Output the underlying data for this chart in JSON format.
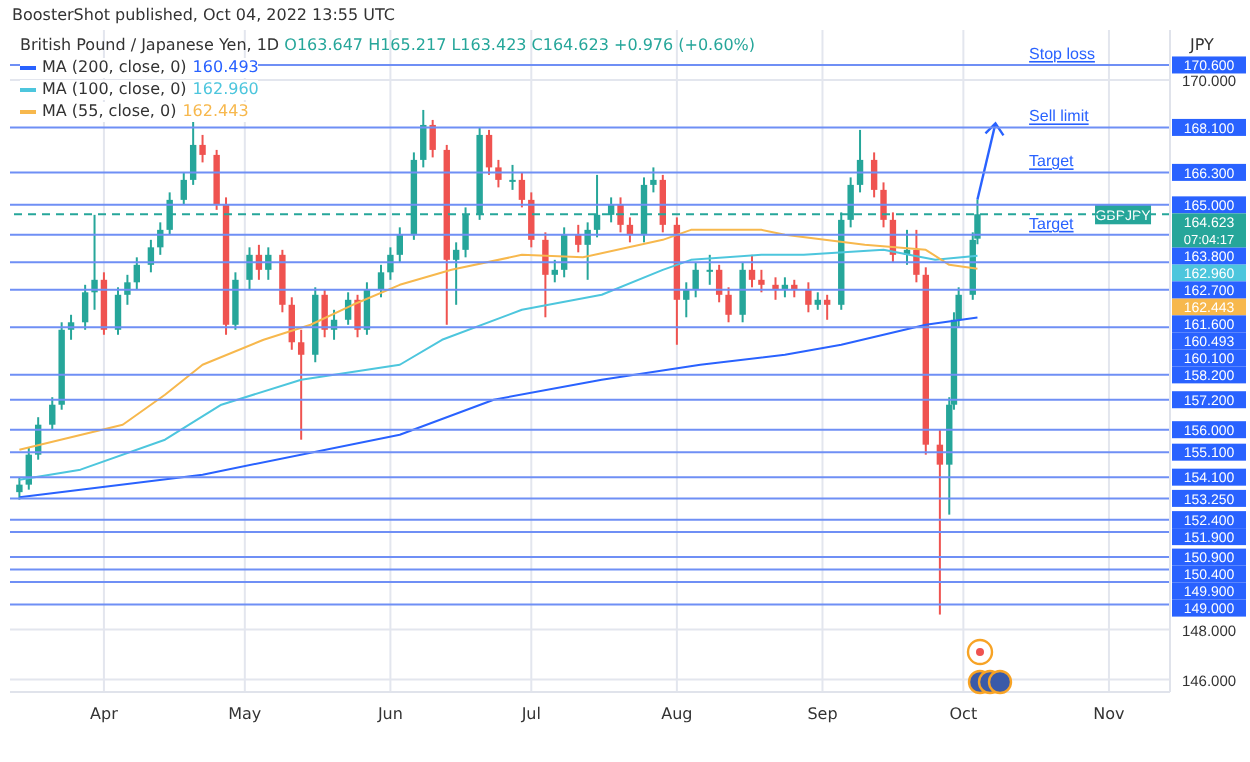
{
  "chart_data": {
    "type": "candlestick",
    "title": "British Pound / Japanese Yen, 1D",
    "ylabel": "JPY",
    "annotations": [
      "BoosterShot published, Oct 04, 2022 13:55 UTC",
      "O163.647 H165.217 L163.423 C164.623 +0.976 (+0.60%)",
      "07:04:17",
      {
        "text": "Stop loss",
        "x": "2022-10-15",
        "y": 170.6
      },
      {
        "text": "Sell limit",
        "x": "2022-10-15",
        "y": 168.1
      },
      {
        "text": "Target",
        "x": "2022-10-15",
        "y": 166.3
      },
      {
        "text": "Target",
        "x": "2022-10-15",
        "y": 163.8
      },
      {
        "text": "GBPJPY",
        "x": "2022-11-04",
        "y": 164.623
      },
      "160.493",
      "162.960",
      "162.443"
    ],
    "x": [
      "2022-03-14",
      "2022-03-16",
      "2022-03-18",
      "2022-03-21",
      "2022-03-23",
      "2022-03-25",
      "2022-03-28",
      "2022-03-30",
      "2022-04-01",
      "2022-04-04",
      "2022-04-06",
      "2022-04-08",
      "2022-04-11",
      "2022-04-13",
      "2022-04-15",
      "2022-04-18",
      "2022-04-20",
      "2022-04-22",
      "2022-04-25",
      "2022-04-27",
      "2022-04-29",
      "2022-05-02",
      "2022-05-04",
      "2022-05-06",
      "2022-05-09",
      "2022-05-11",
      "2022-05-13",
      "2022-05-16",
      "2022-05-18",
      "2022-05-20",
      "2022-05-23",
      "2022-05-25",
      "2022-05-27",
      "2022-05-30",
      "2022-06-01",
      "2022-06-03",
      "2022-06-06",
      "2022-06-08",
      "2022-06-10",
      "2022-06-13",
      "2022-06-15",
      "2022-06-17",
      "2022-06-20",
      "2022-06-22",
      "2022-06-24",
      "2022-06-27",
      "2022-06-29",
      "2022-07-01",
      "2022-07-04",
      "2022-07-06",
      "2022-07-08",
      "2022-07-11",
      "2022-07-13",
      "2022-07-15",
      "2022-07-18",
      "2022-07-20",
      "2022-07-22",
      "2022-07-25",
      "2022-07-27",
      "2022-07-29",
      "2022-08-01",
      "2022-08-03",
      "2022-08-05",
      "2022-08-08",
      "2022-08-10",
      "2022-08-12",
      "2022-08-15",
      "2022-08-17",
      "2022-08-19",
      "2022-08-22",
      "2022-08-24",
      "2022-08-26",
      "2022-08-29",
      "2022-08-31",
      "2022-09-02",
      "2022-09-05",
      "2022-09-07",
      "2022-09-09",
      "2022-09-12",
      "2022-09-14",
      "2022-09-16",
      "2022-09-19",
      "2022-09-21",
      "2022-09-23",
      "2022-09-26",
      "2022-09-28",
      "2022-09-29",
      "2022-09-30",
      "2022-10-03",
      "2022-10-04"
    ],
    "ohlc": [
      [
        153.5,
        154.1,
        153.2,
        153.8
      ],
      [
        153.8,
        155.3,
        153.6,
        155.0
      ],
      [
        155.0,
        156.5,
        154.8,
        156.2
      ],
      [
        156.2,
        157.3,
        156.0,
        157.0
      ],
      [
        157.0,
        160.3,
        156.8,
        160.0
      ],
      [
        160.0,
        160.6,
        159.6,
        160.3
      ],
      [
        160.3,
        161.8,
        160.0,
        161.5
      ],
      [
        161.5,
        164.6,
        160.8,
        162.0
      ],
      [
        162.0,
        162.3,
        159.8,
        160.0
      ],
      [
        160.0,
        161.7,
        159.8,
        161.4
      ],
      [
        161.4,
        162.2,
        161.0,
        161.9
      ],
      [
        161.9,
        162.9,
        161.6,
        162.6
      ],
      [
        162.6,
        163.6,
        162.3,
        163.3
      ],
      [
        163.3,
        164.3,
        163.0,
        164.0
      ],
      [
        164.0,
        165.5,
        163.8,
        165.2
      ],
      [
        165.2,
        166.3,
        165.0,
        166.0
      ],
      [
        166.0,
        168.4,
        165.8,
        167.4
      ],
      [
        167.4,
        167.8,
        166.7,
        167.0
      ],
      [
        167.0,
        167.2,
        164.8,
        165.0
      ],
      [
        165.0,
        165.3,
        159.8,
        160.2
      ],
      [
        160.2,
        162.3,
        160.0,
        162.0
      ],
      [
        162.0,
        163.3,
        161.6,
        163.0
      ],
      [
        163.0,
        163.4,
        162.0,
        162.4
      ],
      [
        162.4,
        163.3,
        162.0,
        163.0
      ],
      [
        163.0,
        163.2,
        160.7,
        161.0
      ],
      [
        161.0,
        161.3,
        159.2,
        159.5
      ],
      [
        159.5,
        160.0,
        155.6,
        159.0
      ],
      [
        159.0,
        161.7,
        158.7,
        161.4
      ],
      [
        161.4,
        161.6,
        159.7,
        160.0
      ],
      [
        160.0,
        160.8,
        159.6,
        160.4
      ],
      [
        160.4,
        161.5,
        160.2,
        161.2
      ],
      [
        161.2,
        161.4,
        159.7,
        160.0
      ],
      [
        160.0,
        161.9,
        159.8,
        161.6
      ],
      [
        161.6,
        162.6,
        161.3,
        162.3
      ],
      [
        162.3,
        163.3,
        162.0,
        163.0
      ],
      [
        163.0,
        164.1,
        162.7,
        163.8
      ],
      [
        163.8,
        167.1,
        163.6,
        166.8
      ],
      [
        166.8,
        168.8,
        166.5,
        168.2
      ],
      [
        168.2,
        168.4,
        166.9,
        167.2
      ],
      [
        167.2,
        167.4,
        160.2,
        162.8
      ],
      [
        162.8,
        163.5,
        161.0,
        163.2
      ],
      [
        163.2,
        164.9,
        162.9,
        164.6
      ],
      [
        164.6,
        168.1,
        164.4,
        167.8
      ],
      [
        167.8,
        168.0,
        166.2,
        166.5
      ],
      [
        166.5,
        166.8,
        165.7,
        166.0
      ],
      [
        166.0,
        166.6,
        165.6,
        166.0
      ],
      [
        166.0,
        166.3,
        164.9,
        165.2
      ],
      [
        165.2,
        165.5,
        163.3,
        163.6
      ],
      [
        163.6,
        163.9,
        160.5,
        162.2
      ],
      [
        162.2,
        162.8,
        161.9,
        162.4
      ],
      [
        162.4,
        164.1,
        162.1,
        163.8
      ],
      [
        163.8,
        164.2,
        163.1,
        163.4
      ],
      [
        163.4,
        164.3,
        162.0,
        164.0
      ],
      [
        164.0,
        166.2,
        163.7,
        164.6
      ],
      [
        164.6,
        165.3,
        164.3,
        165.0
      ],
      [
        165.0,
        165.3,
        163.9,
        164.2
      ],
      [
        164.2,
        164.5,
        163.5,
        163.8
      ],
      [
        163.8,
        166.1,
        163.5,
        165.8
      ],
      [
        165.8,
        166.5,
        165.5,
        166.0
      ],
      [
        166.0,
        166.2,
        163.9,
        164.2
      ],
      [
        164.2,
        164.5,
        159.4,
        161.2
      ],
      [
        161.2,
        161.9,
        160.5,
        161.6
      ],
      [
        161.6,
        162.7,
        161.3,
        162.4
      ],
      [
        162.4,
        163.0,
        161.8,
        162.4
      ],
      [
        162.4,
        162.6,
        161.1,
        161.4
      ],
      [
        161.4,
        161.7,
        160.3,
        160.6
      ],
      [
        160.6,
        162.7,
        160.3,
        162.4
      ],
      [
        162.4,
        163.0,
        161.7,
        162.0
      ],
      [
        162.0,
        162.4,
        161.5,
        161.8
      ],
      [
        161.8,
        162.1,
        161.2,
        161.6
      ],
      [
        161.6,
        162.1,
        161.3,
        161.8
      ],
      [
        161.8,
        162.0,
        161.3,
        161.6
      ],
      [
        161.6,
        161.9,
        160.7,
        161.0
      ],
      [
        161.0,
        161.5,
        160.8,
        161.2
      ],
      [
        161.2,
        161.4,
        160.4,
        161.0
      ],
      [
        161.0,
        164.7,
        160.8,
        164.4
      ],
      [
        164.4,
        166.1,
        164.1,
        165.8
      ],
      [
        165.8,
        168.0,
        165.5,
        166.8
      ],
      [
        166.8,
        167.1,
        165.3,
        165.6
      ],
      [
        165.6,
        165.9,
        164.1,
        164.4
      ],
      [
        164.4,
        164.7,
        162.7,
        163.0
      ],
      [
        163.0,
        164.0,
        162.6,
        163.2
      ],
      [
        163.2,
        164.0,
        161.9,
        162.2
      ],
      [
        162.2,
        162.5,
        155.0,
        155.4
      ],
      [
        155.4,
        156.0,
        148.6,
        154.6
      ],
      [
        154.6,
        157.3,
        152.6,
        157.0
      ],
      [
        157.0,
        160.7,
        156.8,
        160.4
      ],
      [
        160.4,
        161.7,
        160.1,
        161.4
      ],
      [
        161.4,
        163.9,
        161.2,
        163.6
      ],
      [
        163.647,
        165.217,
        163.423,
        164.623
      ]
    ],
    "series": [
      {
        "type": "line",
        "name": "MA (200, close, 0)",
        "color": "#2962ff",
        "x": [
          "2022-03-14",
          "2022-04-22",
          "2022-06-03",
          "2022-06-23",
          "2022-07-16",
          "2022-08-06",
          "2022-08-24",
          "2022-09-05",
          "2022-09-23",
          "2022-10-04"
        ],
        "values": [
          153.3,
          154.2,
          155.8,
          157.2,
          158.0,
          158.6,
          159.0,
          159.4,
          160.2,
          160.493
        ]
      },
      {
        "type": "line",
        "name": "MA (100, close, 0)",
        "color": "#4dc6dd",
        "x": [
          "2022-03-14",
          "2022-03-27",
          "2022-04-14",
          "2022-04-26",
          "2022-05-13",
          "2022-06-03",
          "2022-06-12",
          "2022-06-29",
          "2022-07-16",
          "2022-07-29",
          "2022-08-04",
          "2022-08-19",
          "2022-08-28",
          "2022-09-14",
          "2022-09-25",
          "2022-10-04"
        ],
        "values": [
          154.0,
          154.4,
          155.6,
          157.0,
          158.0,
          158.6,
          159.6,
          160.8,
          161.4,
          162.4,
          162.8,
          163.0,
          163.0,
          163.2,
          162.8,
          162.96
        ]
      },
      {
        "type": "line",
        "name": "MA (55, close, 0)",
        "color": "#f7b84d",
        "x": [
          "2022-03-14",
          "2022-04-05",
          "2022-04-14",
          "2022-04-22",
          "2022-05-05",
          "2022-05-15",
          "2022-05-24",
          "2022-06-03",
          "2022-06-14",
          "2022-06-29",
          "2022-07-12",
          "2022-07-29",
          "2022-08-04",
          "2022-08-19",
          "2022-08-24",
          "2022-09-10",
          "2022-09-23",
          "2022-09-28",
          "2022-10-04"
        ],
        "values": [
          155.2,
          156.2,
          157.4,
          158.6,
          159.6,
          160.2,
          161.0,
          161.8,
          162.4,
          163.0,
          162.9,
          163.6,
          164.0,
          164.0,
          163.8,
          163.4,
          163.2,
          162.6,
          162.443
        ]
      }
    ],
    "xlim": [
      "2022-03-12",
      "2022-11-14"
    ],
    "xticks": [
      {
        "value": "2022-04-01",
        "label": "Apr"
      },
      {
        "value": "2022-05-01",
        "label": "May"
      },
      {
        "value": "2022-06-01",
        "label": "Jun"
      },
      {
        "value": "2022-07-01",
        "label": "Jul"
      },
      {
        "value": "2022-08-01",
        "label": "Aug"
      },
      {
        "value": "2022-09-01",
        "label": "Sep"
      },
      {
        "value": "2022-10-01",
        "label": "Oct"
      },
      {
        "value": "2022-11-01",
        "label": "Nov"
      }
    ],
    "ylim": [
      145.5,
      172
    ],
    "yticks": [
      {
        "value": 146,
        "label": "146.000"
      },
      {
        "value": 148,
        "label": "148.000"
      },
      {
        "value": 170,
        "label": "170.000"
      }
    ],
    "grid": true,
    "legend": "top left",
    "ref_lines": [
      {
        "axis": "y",
        "value": 170.6,
        "label": "170.600",
        "color": "#6f8ff5"
      },
      {
        "axis": "y",
        "value": 168.1,
        "label": "168.100",
        "color": "#6f8ff5"
      },
      {
        "axis": "y",
        "value": 166.3,
        "label": "166.300",
        "color": "#6f8ff5"
      },
      {
        "axis": "y",
        "value": 165.0,
        "label": "165.000",
        "color": "#6f8ff5"
      },
      {
        "axis": "y",
        "value": 163.8,
        "label": "163.800",
        "color": "#6f8ff5"
      },
      {
        "axis": "y",
        "value": 162.7,
        "label": "162.700",
        "color": "#6f8ff5"
      },
      {
        "axis": "y",
        "value": 161.6,
        "label": "161.600",
        "color": "#6f8ff5"
      },
      {
        "axis": "y",
        "value": 160.1,
        "label": "160.100",
        "color": "#6f8ff5"
      },
      {
        "axis": "y",
        "value": 158.2,
        "label": "158.200",
        "color": "#6f8ff5"
      },
      {
        "axis": "y",
        "value": 157.2,
        "label": "157.200",
        "color": "#6f8ff5"
      },
      {
        "axis": "y",
        "value": 156.0,
        "label": "156.000",
        "color": "#6f8ff5"
      },
      {
        "axis": "y",
        "value": 155.1,
        "label": "155.100",
        "color": "#6f8ff5"
      },
      {
        "axis": "y",
        "value": 154.1,
        "label": "154.100",
        "color": "#6f8ff5"
      },
      {
        "axis": "y",
        "value": 153.25,
        "label": "153.250",
        "color": "#6f8ff5"
      },
      {
        "axis": "y",
        "value": 152.4,
        "label": "152.400",
        "color": "#6f8ff5"
      },
      {
        "axis": "y",
        "value": 151.9,
        "label": "151.900",
        "color": "#6f8ff5"
      },
      {
        "axis": "y",
        "value": 150.9,
        "label": "150.900",
        "color": "#6f8ff5"
      },
      {
        "axis": "y",
        "value": 150.4,
        "label": "150.400",
        "color": "#6f8ff5"
      },
      {
        "axis": "y",
        "value": 149.9,
        "label": "149.900",
        "color": "#6f8ff5"
      },
      {
        "axis": "y",
        "value": 149.0,
        "label": "149.000",
        "color": "#6f8ff5"
      },
      {
        "axis": "y",
        "value": 164.623,
        "label": "164.623",
        "color": "#26a69a",
        "line_style": "dashed"
      }
    ]
  }
}
